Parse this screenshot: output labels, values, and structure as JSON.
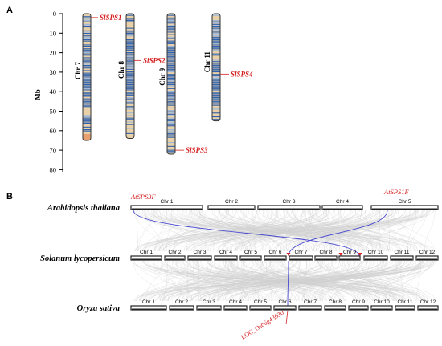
{
  "panel_a": {
    "label": "A",
    "axis_title": "Mb",
    "axis_ticks": [
      "0",
      "10",
      "20",
      "30",
      "40",
      "50",
      "60",
      "70",
      "80"
    ],
    "chromosomes": [
      {
        "name": "Chr 7",
        "length_mb": 65,
        "gene": "SlSPS1",
        "gene_pos_mb": 2
      },
      {
        "name": "Chr 8",
        "length_mb": 64,
        "gene": "SlSPS2",
        "gene_pos_mb": 24
      },
      {
        "name": "Chr 9",
        "length_mb": 72,
        "gene": "SlSPS3",
        "gene_pos_mb": 70
      },
      {
        "name": "Chr 11",
        "length_mb": 55,
        "gene": "SlSPS4",
        "gene_pos_mb": 31
      }
    ],
    "colors": {
      "gene_label": "#d42020",
      "density_high": "#2f62b0",
      "density_mid": "#9db8dc",
      "density_low": "#e8d0a8",
      "chrom_border": "#333333"
    }
  },
  "panel_b": {
    "label": "B",
    "species": [
      {
        "name": "Arabidopsis thaliana",
        "chromosomes": [
          "Chr 1",
          "Chr 2",
          "Chr 3",
          "Chr 4",
          "Chr 5"
        ]
      },
      {
        "name": "Solanum lycopersicum",
        "chromosomes": [
          "Chr 1",
          "Chr 2",
          "Chr 3",
          "Chr 4",
          "Chr 5",
          "Chr 6",
          "Chr 7",
          "Chr 8",
          "Chr 9",
          "Chr 10",
          "Chr 11",
          "Chr 12"
        ]
      },
      {
        "name": "Oryza sativa",
        "chromosomes": [
          "Chr 1",
          "Chr 2",
          "Chr 3",
          "Chr 4",
          "Chr 5",
          "Chr 6",
          "Chr 7",
          "Chr 8",
          "Chr 9",
          "Chr 10",
          "Chr 11",
          "Chr 12"
        ]
      }
    ],
    "gene_labels": {
      "at_left": "AtSPS3F",
      "at_right": "AtSPS1F",
      "os": "LOC_Os06g43630"
    },
    "colors": {
      "synteny_bg": "#cfcfcf",
      "synteny_highlight": "#4a4ad0",
      "marker": "#d42020"
    }
  }
}
